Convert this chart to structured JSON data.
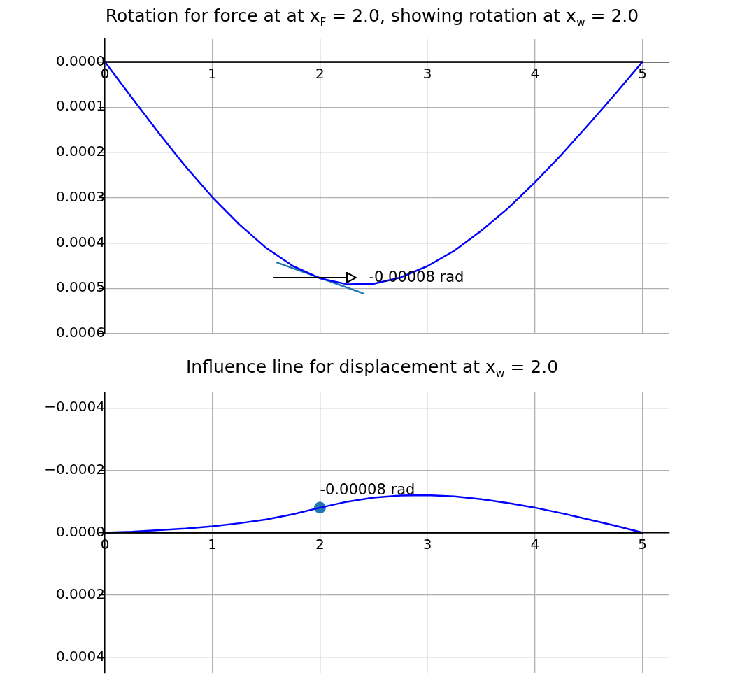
{
  "chart_data": [
    {
      "type": "line",
      "title": "Rotation for force at at x$_{F}$ = 2.0, showing rotation at x$_{w}$ = 2.0",
      "xlim": [
        0,
        5.25
      ],
      "xticks": [
        0,
        1,
        2,
        3,
        4,
        5
      ],
      "ylim": [
        0.0006,
        -5e-05
      ],
      "yticks": [
        {
          "value": 0,
          "label": "0.0000"
        },
        {
          "value": 0.0001,
          "label": "0.0001"
        },
        {
          "value": 0.0002,
          "label": "0.0002"
        },
        {
          "value": 0.0003,
          "label": "0.0003"
        },
        {
          "value": 0.0004,
          "label": "0.0004"
        },
        {
          "value": 0.0005,
          "label": "0.0005"
        },
        {
          "value": 0.0006,
          "label": "0.0006"
        }
      ],
      "grid": true,
      "legend": false,
      "line_style": "solid",
      "series": [
        {
          "color": "#000000",
          "x": [
            0,
            5
          ],
          "values": [
            0,
            0
          ]
        },
        {
          "color": "#0000ff",
          "x": [
            0,
            0.25,
            0.5,
            0.75,
            1,
            1.25,
            1.5,
            1.75,
            2,
            2.25,
            2.5,
            2.75,
            3,
            3.25,
            3.5,
            3.75,
            4,
            4.25,
            4.5,
            4.75,
            5
          ],
          "values": [
            0,
            7.9e-05,
            0.000157,
            0.000231,
            0.000299,
            0.000359,
            0.000411,
            0.000451,
            0.000478,
            0.000491,
            0.00049,
            0.000476,
            0.000451,
            0.000417,
            0.000373,
            0.000323,
            0.000266,
            0.000204,
            0.000138,
            7e-05,
            0
          ]
        },
        {
          "color": "#1f77b4",
          "x": [
            1.6,
            2.4
          ],
          "values": [
            0.000443,
            0.000511
          ]
        }
      ],
      "annotations": [
        "-0.00008 rad"
      ]
    },
    {
      "type": "line",
      "title": "Influence line for displacement at x$_{w}$ = 2.0",
      "xlim": [
        0,
        5.25
      ],
      "xticks": [
        0,
        1,
        2,
        3,
        4,
        5
      ],
      "ylim": [
        0.00045,
        -0.00045
      ],
      "yticks": [
        {
          "value": -0.0004,
          "label": "−0.0004"
        },
        {
          "value": -0.0002,
          "label": "−0.0002"
        },
        {
          "value": 0,
          "label": "0.0000"
        },
        {
          "value": 0.0002,
          "label": "0.0002"
        },
        {
          "value": 0.0004,
          "label": "0.0004"
        }
      ],
      "grid": true,
      "legend": false,
      "line_style": "solid",
      "series": [
        {
          "color": "#000000",
          "x": [
            0,
            5
          ],
          "values": [
            0,
            0
          ]
        },
        {
          "color": "#0000ff",
          "x": [
            0,
            0.25,
            0.5,
            0.75,
            1,
            1.25,
            1.5,
            1.75,
            2,
            2.25,
            2.5,
            2.75,
            3,
            3.25,
            3.5,
            3.75,
            4,
            4.25,
            4.5,
            4.75,
            5
          ],
          "values": [
            0,
            -3e-06,
            -8e-06,
            -1.3e-05,
            -2e-05,
            -3e-05,
            -4.2e-05,
            -5.9e-05,
            -8e-05,
            -9.9e-05,
            -0.000112,
            -0.000119,
            -0.00012,
            -0.000116,
            -0.000107,
            -9.5e-05,
            -8e-05,
            -6.2e-05,
            -4.2e-05,
            -2.2e-05,
            0
          ]
        },
        {
          "type": "scatter",
          "color": "#1f77b4",
          "x": [
            2
          ],
          "values": [
            -8e-05
          ]
        }
      ],
      "annotations": [
        {
          "text": "-0.00008 rad",
          "x": 2,
          "y": -8e-05
        }
      ]
    }
  ]
}
